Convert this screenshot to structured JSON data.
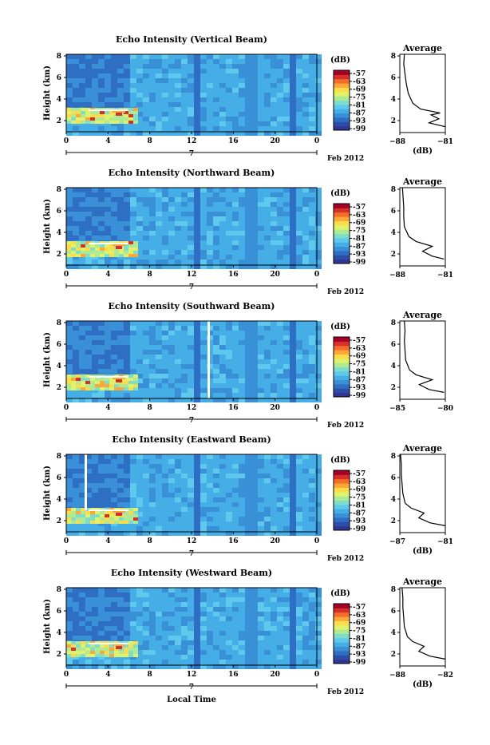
{
  "colors": {
    "scale": [
      "#313695",
      "#2c4ea8",
      "#2f6fc3",
      "#3a90d6",
      "#46aee6",
      "#5ec9ec",
      "#80ddc8",
      "#aeea96",
      "#dff26a",
      "#fbdc4a",
      "#fca737",
      "#f46d2b",
      "#d6302a",
      "#a50026"
    ],
    "field_bg": "#3fa6e4",
    "dark_band": "#2a5cc0",
    "mid_band": "#3380d6"
  },
  "colorbar": {
    "unit": "(dB)",
    "ticks": [
      "-57",
      "-63",
      "-69",
      "-75",
      "-81",
      "-87",
      "-93",
      "-99"
    ]
  },
  "xaxis": {
    "ticks": [
      "0",
      "4",
      "8",
      "12",
      "16",
      "20",
      "0"
    ],
    "day_label": "7",
    "date_label": "Feb 2012",
    "label": "Local Time"
  },
  "yaxis": {
    "label": "Height (km)",
    "ticks": [
      "8",
      "6",
      "4",
      "2"
    ]
  },
  "profile_title": "Average",
  "profile_unit": "(dB)",
  "panels": [
    {
      "title": "Echo Intensity (Vertical Beam)",
      "profile_xticks": [
        "−88",
        "−81"
      ],
      "profile_yticks": [
        "8",
        "6",
        "4",
        "2"
      ],
      "show_db": true
    },
    {
      "title": "Echo Intensity (Northward Beam)",
      "profile_xticks": [
        "−88",
        "−81"
      ],
      "profile_yticks": [
        "8",
        "6",
        "4",
        "2"
      ],
      "show_db": false
    },
    {
      "title": "Echo Intensity (Southward Beam)",
      "profile_xticks": [
        "−85",
        "−80"
      ],
      "profile_yticks": [
        "8",
        "6",
        "4",
        "2"
      ],
      "show_db": false
    },
    {
      "title": "Echo Intensity (Eastward Beam)",
      "profile_xticks": [
        "−87",
        "−81"
      ],
      "profile_yticks": [
        "8",
        "6",
        "4",
        "2"
      ],
      "show_db": true
    },
    {
      "title": "Echo Intensity (Westward Beam)",
      "profile_xticks": [
        "−88",
        "−82"
      ],
      "profile_yticks": [
        "8",
        "6",
        "4",
        "2"
      ],
      "show_db": true
    }
  ],
  "chart_data": [
    {
      "type": "heatmap",
      "title": "Echo Intensity (Vertical Beam)",
      "xlabel": "Local Time",
      "ylabel": "Height (km)",
      "x_range_hours": [
        0,
        24
      ],
      "y_range_km": [
        0.8,
        8
      ],
      "colorbar_range_db": [
        -99,
        -57
      ],
      "profile": {
        "title": "Average",
        "xlim": [
          -88,
          -81
        ],
        "ylim": [
          0,
          8
        ],
        "xlabel": "(dB)",
        "height_km": [
          0.6,
          1.0,
          1.4,
          1.8,
          2.0,
          2.4,
          3.0,
          4.0,
          5.0,
          6.0,
          7.0,
          8.0
        ],
        "avg_db": [
          -81.0,
          -83.5,
          -82.0,
          -83.2,
          -81.8,
          -84.8,
          -86.0,
          -86.7,
          -87.0,
          -87.2,
          -87.4,
          -87.3
        ]
      }
    },
    {
      "type": "heatmap",
      "title": "Echo Intensity (Northward Beam)",
      "xlabel": "Local Time",
      "ylabel": "Height (km)",
      "x_range_hours": [
        0,
        24
      ],
      "y_range_km": [
        0.8,
        8
      ],
      "colorbar_range_db": [
        -99,
        -57
      ],
      "profile": {
        "title": "Average",
        "xlim": [
          -88,
          -81
        ],
        "ylim": [
          0,
          8
        ],
        "xlabel": "(dB)",
        "height_km": [
          0.7,
          1.0,
          1.5,
          2.0,
          2.5,
          3.0,
          4.0,
          5.0,
          6.0,
          7.0,
          8.0
        ],
        "avg_db": [
          -81.2,
          -83.0,
          -84.5,
          -83.0,
          -85.5,
          -86.6,
          -87.3,
          -87.4,
          -87.4,
          -87.5,
          -87.6
        ]
      }
    },
    {
      "type": "heatmap",
      "title": "Echo Intensity (Southward Beam)",
      "xlabel": "Local Time",
      "ylabel": "Height (km)",
      "x_range_hours": [
        0,
        24
      ],
      "y_range_km": [
        0.8,
        8
      ],
      "colorbar_range_db": [
        -99,
        -57
      ],
      "profile": {
        "title": "Average",
        "xlim": [
          -87,
          -80
        ],
        "ylim": [
          0,
          8
        ],
        "xlabel": "(dB)",
        "height_km": [
          0.7,
          1.0,
          1.5,
          2.0,
          2.5,
          3.0,
          4.0,
          5.0,
          6.0,
          7.0,
          8.0
        ],
        "avg_db": [
          -80.2,
          -82.5,
          -84.0,
          -82.0,
          -84.5,
          -85.5,
          -86.1,
          -86.2,
          -86.3,
          -86.2,
          -86.3
        ]
      }
    },
    {
      "type": "heatmap",
      "title": "Echo Intensity (Eastward Beam)",
      "xlabel": "Local Time",
      "ylabel": "Height (km)",
      "x_range_hours": [
        0,
        24
      ],
      "y_range_km": [
        0.8,
        8
      ],
      "colorbar_range_db": [
        -99,
        -57
      ],
      "profile": {
        "title": "Average",
        "xlim": [
          -87,
          -81
        ],
        "ylim": [
          0,
          8
        ],
        "xlabel": "(dB)",
        "height_km": [
          0.7,
          1.0,
          1.5,
          2.0,
          2.5,
          3.0,
          4.0,
          5.0,
          6.0,
          7.0,
          8.0
        ],
        "avg_db": [
          -81.0,
          -83.0,
          -84.5,
          -83.8,
          -85.5,
          -86.3,
          -86.6,
          -86.7,
          -86.8,
          -86.8,
          -86.9
        ]
      }
    },
    {
      "type": "heatmap",
      "title": "Echo Intensity (Westward Beam)",
      "xlabel": "Local Time",
      "ylabel": "Height (km)",
      "x_range_hours": [
        0,
        24
      ],
      "y_range_km": [
        0.8,
        8
      ],
      "colorbar_range_db": [
        -99,
        -57
      ],
      "profile": {
        "title": "Average",
        "xlim": [
          -88,
          -82
        ],
        "ylim": [
          0,
          8
        ],
        "xlabel": "(dB)",
        "height_km": [
          0.7,
          1.0,
          1.5,
          2.0,
          2.5,
          3.0,
          4.0,
          5.0,
          6.0,
          7.0,
          8.0
        ],
        "avg_db": [
          -82.0,
          -84.0,
          -85.5,
          -84.8,
          -86.3,
          -87.0,
          -87.4,
          -87.5,
          -87.6,
          -87.6,
          -87.7
        ]
      }
    }
  ]
}
